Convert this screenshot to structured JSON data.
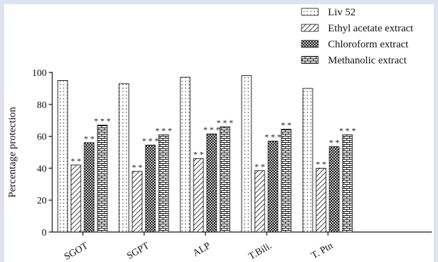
{
  "chart_data": {
    "type": "bar",
    "title": "",
    "xlabel": "",
    "ylabel": "Percentage protection",
    "ylim": [
      0,
      100
    ],
    "yticks": [
      0,
      20,
      40,
      60,
      80,
      100
    ],
    "grid": false,
    "legend_position": "top-right",
    "categories": [
      "SGOT",
      "SGPT",
      "ALP",
      "T.Bili.",
      "T. Ptn"
    ],
    "series": [
      {
        "name": "Liv 52",
        "pattern": "dots",
        "values": [
          95,
          93,
          97,
          98,
          90
        ],
        "annotations": [
          "",
          "",
          "",
          "",
          ""
        ]
      },
      {
        "name": "Ethyl acetate extract",
        "pattern": "diagonal",
        "values": [
          42,
          38,
          46,
          38.5,
          40
        ],
        "annotations": [
          "* *",
          "* *",
          "* *",
          "* *",
          "* *"
        ]
      },
      {
        "name": "Chloroform extract",
        "pattern": "crosshatch",
        "values": [
          56,
          54.5,
          61.5,
          57,
          53.5
        ],
        "annotations": [
          "* *",
          "* * *",
          "* * *",
          "* * *",
          "* *"
        ]
      },
      {
        "name": "Methanolic extract",
        "pattern": "brick",
        "values": [
          67,
          61,
          66,
          64.5,
          61
        ],
        "annotations": [
          "* * *",
          "* * *",
          "* * *",
          "* *",
          "* * *"
        ]
      }
    ]
  }
}
